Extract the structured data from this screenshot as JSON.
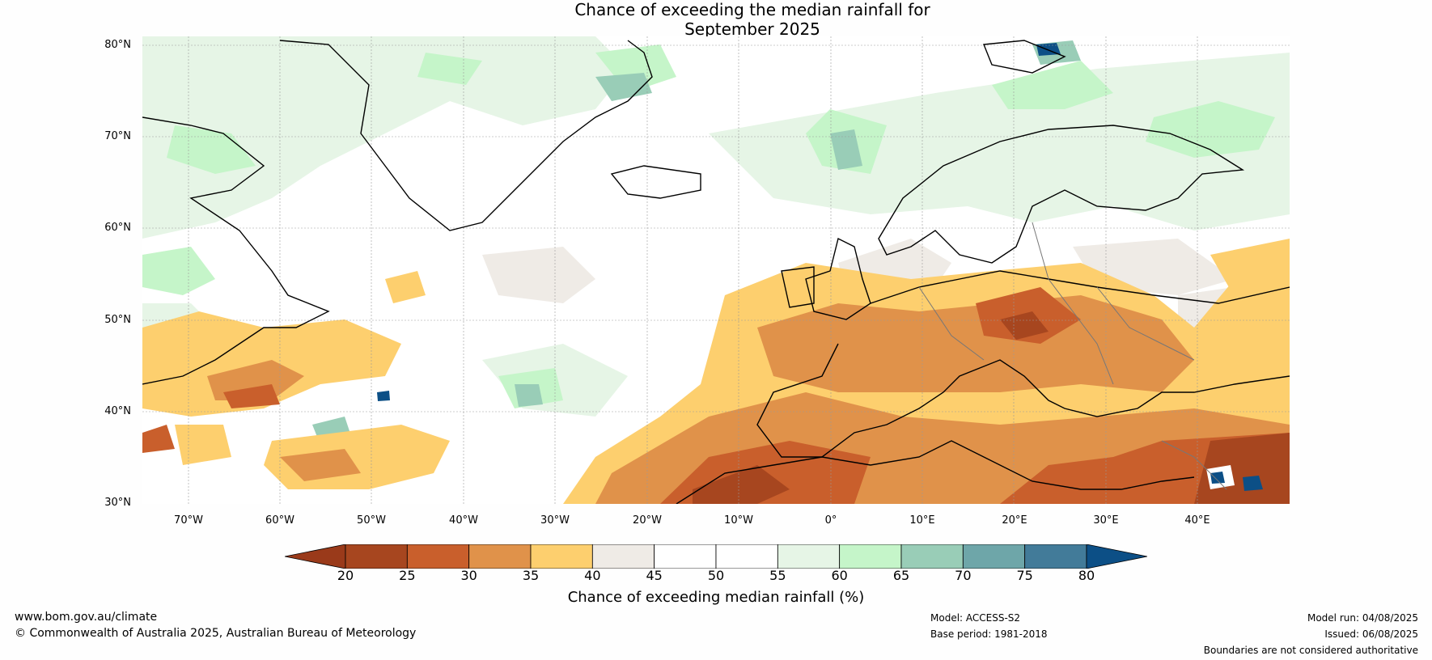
{
  "title": {
    "line1": "Chance of exceeding the median rainfall for",
    "line2": "September 2025"
  },
  "map": {
    "lat_labels": [
      "80°N",
      "70°N",
      "60°N",
      "50°N",
      "40°N",
      "30°N"
    ],
    "lon_labels": [
      "70°W",
      "60°W",
      "50°W",
      "40°W",
      "30°W",
      "20°W",
      "10°W",
      "0°",
      "10°E",
      "20°E",
      "30°E",
      "40°E"
    ],
    "dry_color": "#b5522a",
    "wet_color": "#0c4f86"
  },
  "colorbar": {
    "ticks": [
      "20",
      "25",
      "30",
      "35",
      "40",
      "45",
      "50",
      "55",
      "60",
      "65",
      "70",
      "75",
      "80"
    ],
    "colors": [
      "#a7461f",
      "#c95f2c",
      "#e0924a",
      "#fdcf6e",
      "#efebe6",
      "#ffffff",
      "#ffffff",
      "#e6f5e6",
      "#c5f5c9",
      "#99cdb7",
      "#6ea6a9",
      "#427b99"
    ],
    "under_color": "#9a3a1a",
    "over_color": "#0c4f86",
    "label": "Chance of exceeding median rainfall (%)"
  },
  "footer": {
    "url": "www.bom.gov.au/climate",
    "copyright": "© Commonwealth of Australia 2025, Australian Bureau of Meteorology",
    "model": "Model: ACCESS-S2",
    "base_period": "Base period: 1981-2018",
    "model_run": "Model run: 04/08/2025",
    "issued": "Issued: 06/08/2025",
    "disclaimer": "Boundaries are not considered authoritative"
  }
}
